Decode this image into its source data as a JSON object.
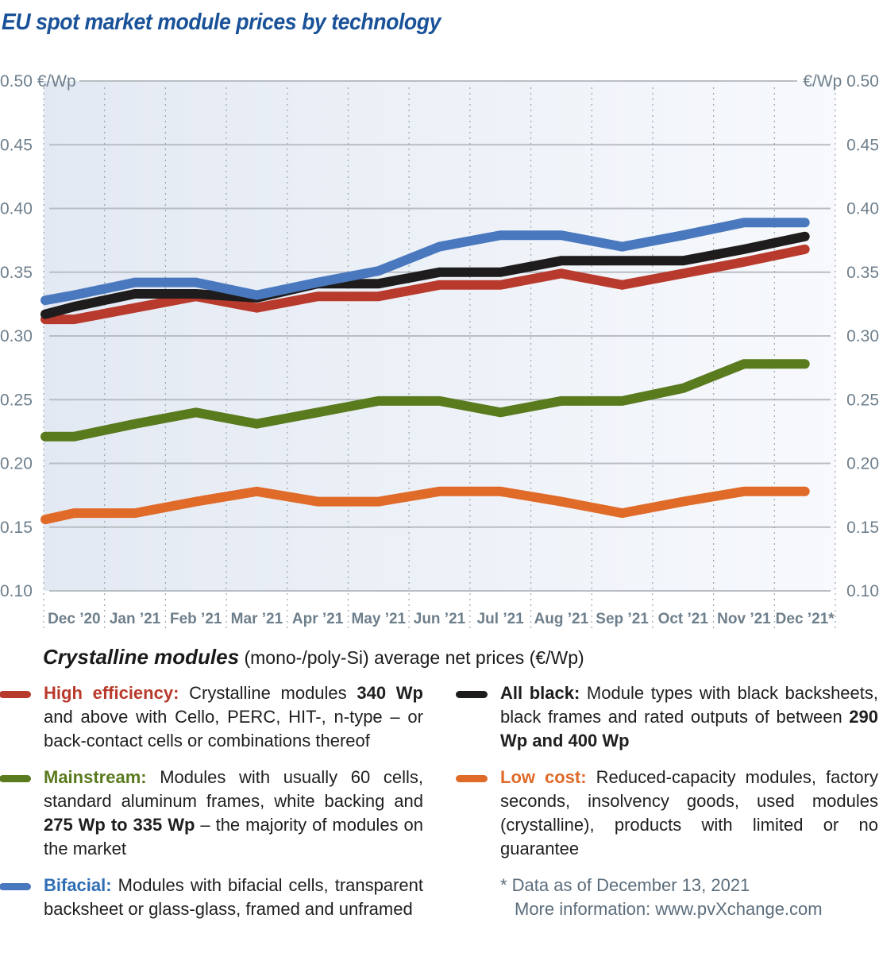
{
  "chart_data": {
    "type": "line",
    "title": "EU spot market module prices by technology",
    "ylabel": "€/Wp",
    "ylim": [
      0.1,
      0.5
    ],
    "yticks": [
      "0.10",
      "0.15",
      "0.20",
      "0.25",
      "0.30",
      "0.35",
      "0.40",
      "0.45",
      "0.50"
    ],
    "ytick_top_left": "0.50 €/Wp",
    "ytick_top_right": "€/Wp 0.50",
    "grid": true,
    "categories": [
      "Dec ’20",
      "Jan ’21",
      "Feb ’21",
      "Mar ’21",
      "Apr ’21",
      "May ’21",
      "Jun ’21",
      "Jul ’21",
      "Aug ’21",
      "Sep ’21",
      "Oct ’21",
      "Nov ’21",
      "Dec ’21*"
    ],
    "series": [
      {
        "name": "Bifacial",
        "color": "#4a78be",
        "start": 0.328,
        "values": [
          0.332,
          0.342,
          0.342,
          0.332,
          0.342,
          0.351,
          0.37,
          0.379,
          0.379,
          0.37,
          0.379,
          0.389,
          0.389
        ]
      },
      {
        "name": "All black",
        "color": "#1e1c1c",
        "start": 0.317,
        "values": [
          0.323,
          0.333,
          0.333,
          0.33,
          0.341,
          0.341,
          0.35,
          0.35,
          0.359,
          0.359,
          0.359,
          0.368,
          0.378
        ]
      },
      {
        "name": "High efficiency",
        "color": "#b83a2c",
        "start": 0.313,
        "values": [
          0.313,
          0.322,
          0.331,
          0.322,
          0.331,
          0.331,
          0.34,
          0.34,
          0.349,
          0.34,
          0.349,
          0.358,
          0.368
        ]
      },
      {
        "name": "Mainstream",
        "color": "#5a7a1e",
        "start": 0.221,
        "values": [
          0.221,
          0.231,
          0.24,
          0.231,
          0.24,
          0.249,
          0.249,
          0.24,
          0.249,
          0.249,
          0.259,
          0.278,
          0.278
        ]
      },
      {
        "name": "Low cost",
        "color": "#e06a28",
        "start": 0.156,
        "values": [
          0.161,
          0.161,
          0.17,
          0.178,
          0.17,
          0.17,
          0.178,
          0.178,
          0.17,
          0.161,
          0.17,
          0.178,
          0.178
        ]
      }
    ]
  },
  "subtitle": {
    "bold": "Crystalline modules",
    "rest": " (mono-/poly-Si) average net prices (€/Wp)"
  },
  "legend": {
    "high_efficiency": {
      "name": "High efficiency:",
      "color": "#b83a2c",
      "t1": " Crystalline modules ",
      "b1": "340 Wp",
      "t2": " and above with Cello, PERC, HIT-, n-type – or back-contact cells or combinations thereof"
    },
    "mainstream": {
      "name": "Mainstream:",
      "color": "#5a7a1e",
      "t1": " Modules with usually 60 cells, standard aluminum frames, white backing and ",
      "b1": "275 Wp to 335 Wp",
      "t2": " – the majority of modules on the market"
    },
    "bifacial": {
      "name": "Bifacial:",
      "color": "#2f6db5",
      "t1": " Modules with bifacial cells, transparent backsheet or glass-glass, framed and unframed"
    },
    "all_black": {
      "name": "All black:",
      "color": "#1e1c1c",
      "t1": " Module types with black backsheets, black frames and rated outputs of between ",
      "b1": "290 Wp and 400 Wp"
    },
    "low_cost": {
      "name": "Low cost:",
      "color": "#e06a28",
      "t1": " Reduced-capacity modules, factory seconds, insolvency goods, used modules (crystalline), products with limited or no guarantee"
    }
  },
  "footnote": {
    "line1": "* Data as of December 13, 2021",
    "line2": "More information: www.pvXchange.com"
  }
}
